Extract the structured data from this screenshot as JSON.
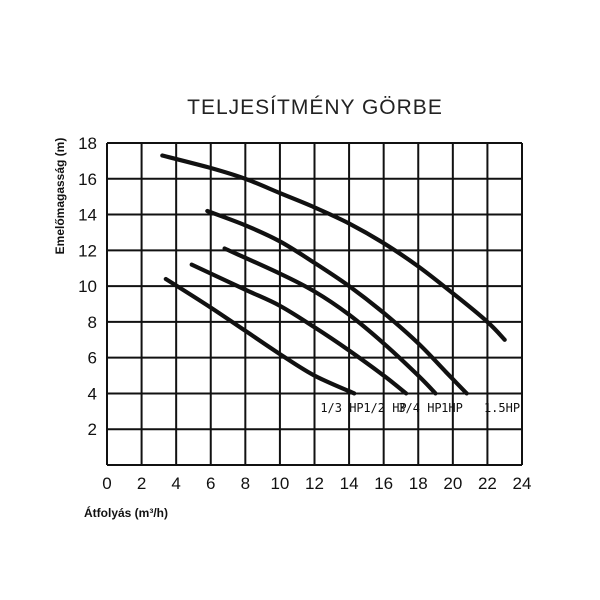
{
  "chart_data": {
    "type": "line",
    "title": "TELJESÍTMÉNY GÖRBE",
    "xlabel": "Átfolyás (m³/h)",
    "ylabel": "Emelőmagasság (m)",
    "xlim": [
      0,
      24
    ],
    "ylim": [
      0,
      18
    ],
    "x_ticks": [
      "0",
      "2",
      "4",
      "6",
      "8",
      "10",
      "12",
      "14",
      "16",
      "18",
      "20",
      "22",
      "24"
    ],
    "y_ticks": [
      "2",
      "4",
      "6",
      "8",
      "10",
      "12",
      "14",
      "16",
      "18"
    ],
    "grid": true,
    "series": [
      {
        "name": "1/3 HP",
        "x": [
          3.4,
          6,
          8,
          10,
          12,
          14.3
        ],
        "y": [
          10.4,
          8.8,
          7.5,
          6.2,
          5.0,
          4.0
        ]
      },
      {
        "name": "1/2 HP",
        "x": [
          4.9,
          8,
          10,
          12,
          14,
          16,
          17.3
        ],
        "y": [
          11.2,
          9.8,
          8.9,
          7.7,
          6.4,
          5.0,
          4.0
        ]
      },
      {
        "name": "3/4 HP",
        "x": [
          6.8,
          10,
          12,
          14,
          16,
          18,
          19
        ],
        "y": [
          12.1,
          10.7,
          9.7,
          8.4,
          6.8,
          5.0,
          4.0
        ]
      },
      {
        "name": "1HP",
        "x": [
          5.8,
          8,
          10,
          12,
          14,
          16,
          18,
          19.6,
          20.8
        ],
        "y": [
          14.2,
          13.4,
          12.5,
          11.3,
          10.0,
          8.5,
          6.8,
          5.2,
          4.0
        ]
      },
      {
        "name": "1.5HP",
        "x": [
          3.2,
          6,
          8,
          10,
          12,
          14,
          16,
          18,
          20,
          22,
          23
        ],
        "y": [
          17.3,
          16.6,
          16.0,
          15.2,
          14.4,
          13.5,
          12.4,
          11.1,
          9.6,
          8.0,
          7.0
        ]
      }
    ]
  }
}
